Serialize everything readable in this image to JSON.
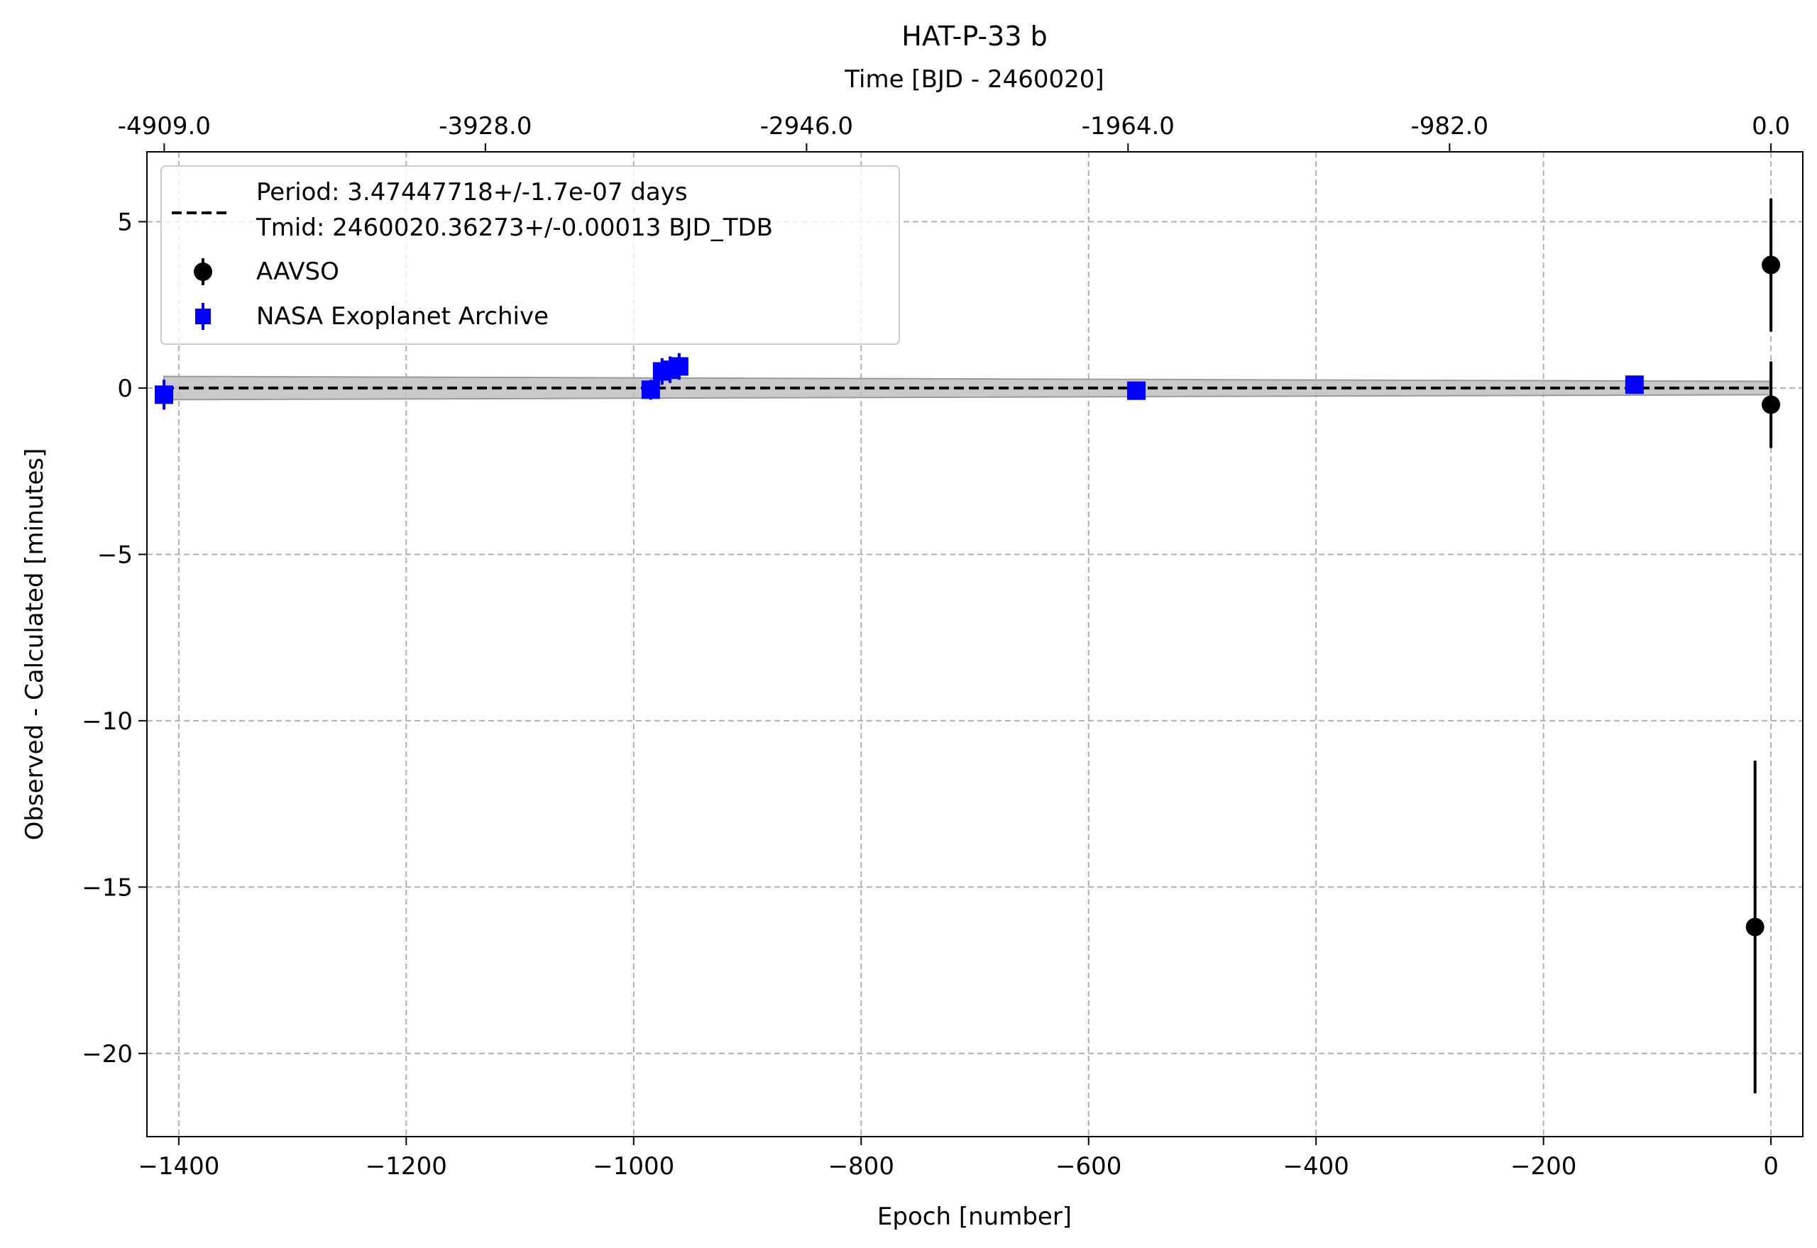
{
  "chart_data": {
    "type": "scatter",
    "title": "HAT-P-33 b",
    "xlabel": "Epoch [number]",
    "ylabel": "Observed - Calculated [minutes]",
    "top_xlabel": "Time [BJD - 2460020]",
    "xlim": [
      -1428,
      28
    ],
    "ylim": [
      -22.5,
      7.1
    ],
    "x_ticks": [
      -1400,
      -1200,
      -1000,
      -800,
      -600,
      -400,
      -200,
      0
    ],
    "x_tick_labels": [
      "−1400",
      "−1200",
      "−1000",
      "−800",
      "−600",
      "−400",
      "−200",
      "0"
    ],
    "y_ticks": [
      5,
      0,
      -5,
      -10,
      -15,
      -20
    ],
    "y_tick_labels": [
      "5",
      "0",
      "−5",
      "−10",
      "−15",
      "−20"
    ],
    "top_ticks": [
      -1412.8,
      -1130.4,
      -848.0,
      -565.3,
      -282.6,
      0
    ],
    "top_tick_labels": [
      "-4909.0",
      "-3928.0",
      "-2946.0",
      "-1964.0",
      "-982.0",
      "0.0"
    ],
    "grid": true,
    "legend_position": "top-left",
    "fit": {
      "label_line1": "Period: 3.47447718+/-1.7e-07 days",
      "label_line2": "Tmid: 2460020.36273+/-0.00013 BJD_TDB",
      "color": "#000000",
      "band_color": "#c0c0c0",
      "band_left": 0.35,
      "band_right": 0.2,
      "x_range": [
        -1413,
        0
      ]
    },
    "series": [
      {
        "name": "AAVSO",
        "marker": "circle",
        "color": "#000000",
        "points": [
          {
            "x": 0,
            "y": 3.7,
            "err": 2.0
          },
          {
            "x": 0,
            "y": -0.5,
            "err": 1.3
          },
          {
            "x": -14,
            "y": -16.2,
            "err": 5.0
          }
        ]
      },
      {
        "name": "NASA Exoplanet Archive",
        "marker": "square",
        "color": "#0000ff",
        "points": [
          {
            "x": -1413,
            "y": -0.2,
            "err": 0.45
          },
          {
            "x": -985,
            "y": -0.05,
            "err": 0.3
          },
          {
            "x": -975,
            "y": 0.5,
            "err": 0.4
          },
          {
            "x": -968,
            "y": 0.55,
            "err": 0.4
          },
          {
            "x": -960,
            "y": 0.65,
            "err": 0.4
          },
          {
            "x": -558,
            "y": -0.08,
            "err": 0.25
          },
          {
            "x": -120,
            "y": 0.1,
            "err": 0.25
          }
        ]
      }
    ]
  }
}
